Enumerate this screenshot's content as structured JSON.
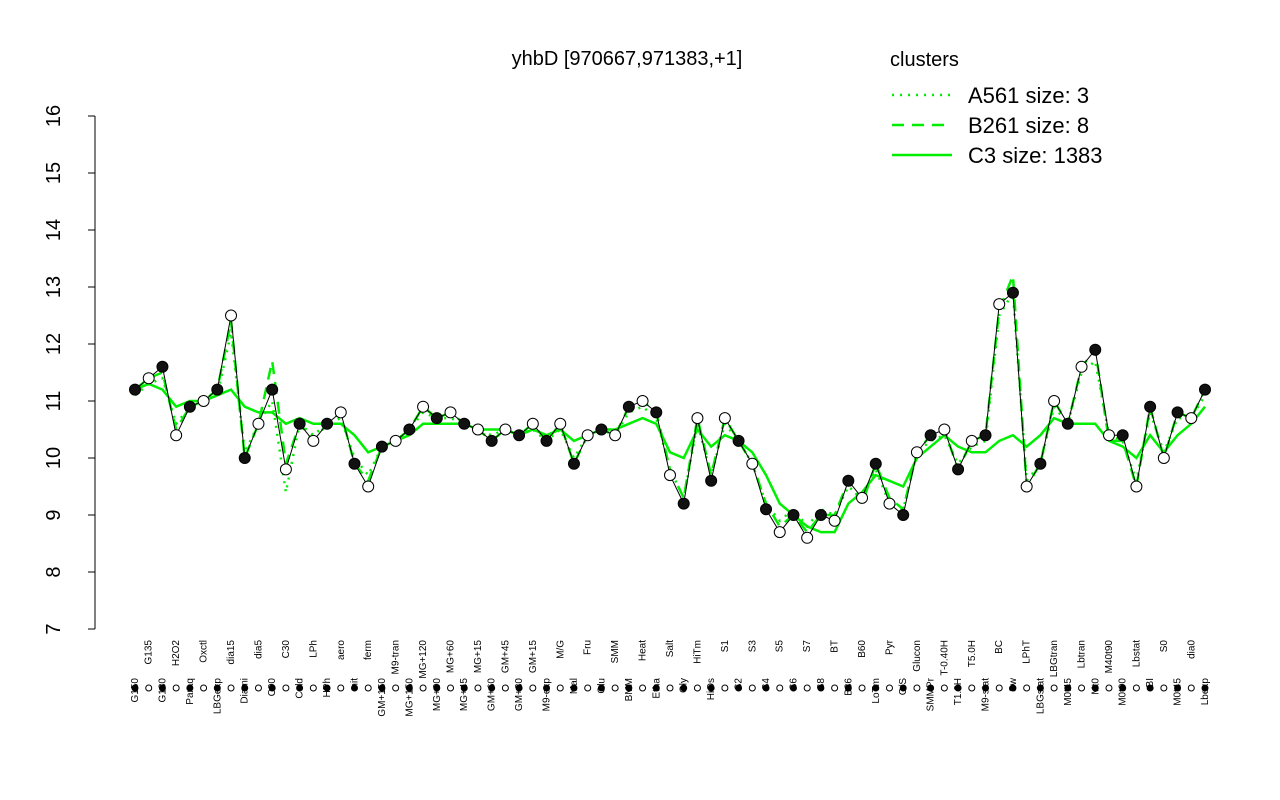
{
  "chart_data": {
    "type": "line",
    "title": "yhbD [970667,971383,+1]",
    "legend_title": "clusters",
    "legend_color": "#00ee00",
    "ylim": [
      7,
      16
    ],
    "yticks": [
      7,
      8,
      9,
      10,
      11,
      12,
      13,
      14,
      15,
      16
    ],
    "categories": [
      "G150",
      "G135",
      "G180",
      "H2O2",
      "Paraq",
      "Oxctl",
      "LBGexp",
      "dia15",
      "Diami",
      "dia5",
      "C90",
      "C30",
      "Cold",
      "LPh",
      "HPh",
      "aero",
      "nit",
      "ferm",
      "GM+150",
      "M9-tran",
      "MG+150",
      "MG+120",
      "MG+90",
      "MG+60",
      "MG+45",
      "MG+15",
      "GM+60",
      "GM+45",
      "GM+30",
      "GM+15",
      "M9-exp",
      "M/G",
      "Mal",
      "Fru",
      "Glu",
      "SMM",
      "BMM",
      "Heat",
      "Etha",
      "Salt",
      "Gly",
      "HiTm",
      "HiOs",
      "S1",
      "S2",
      "S3",
      "S4",
      "S5",
      "S6",
      "S7",
      "S8",
      "BT",
      "B36",
      "B60",
      "LoTm",
      "Pyr",
      "G/S",
      "Glucon",
      "SMMPr",
      "T-0.40H",
      "T1.0H",
      "T5.0H",
      "M9-stat",
      "BC",
      "Sw",
      "LPhT",
      "LBGstat",
      "LBGtran",
      "M0t45",
      "Lbtran",
      "Mt0",
      "M40t90",
      "M0t90",
      "Lbstat",
      "BI",
      "S0",
      "M0t45",
      "dia0",
      "Lbexp"
    ],
    "points": [
      11.2,
      11.4,
      11.6,
      10.4,
      10.9,
      11.0,
      11.2,
      12.5,
      10.0,
      10.6,
      11.2,
      9.8,
      10.6,
      10.3,
      10.6,
      10.8,
      9.9,
      9.5,
      10.2,
      10.3,
      10.5,
      10.9,
      10.7,
      10.8,
      10.6,
      10.5,
      10.3,
      10.5,
      10.4,
      10.6,
      10.3,
      10.6,
      9.9,
      10.4,
      10.5,
      10.4,
      10.9,
      11.0,
      10.8,
      9.7,
      9.2,
      10.7,
      9.6,
      10.7,
      10.3,
      9.9,
      9.1,
      8.7,
      9.0,
      8.6,
      9.0,
      8.9,
      9.6,
      9.3,
      9.9,
      9.2,
      9.0,
      10.1,
      10.4,
      10.5,
      9.8,
      10.3,
      10.4,
      12.7,
      12.9,
      9.5,
      9.9,
      11.0,
      10.6,
      11.6,
      11.9,
      10.4,
      10.4,
      9.5,
      10.9,
      10.0,
      10.8,
      10.7,
      11.2
    ],
    "series": [
      {
        "name": "A561 size: 3",
        "color": "#00ee00",
        "dash": "dotted",
        "values": [
          11.1,
          11.3,
          11.4,
          10.6,
          10.9,
          11.0,
          11.1,
          12.2,
          10.1,
          10.6,
          11.0,
          9.4,
          10.6,
          10.4,
          10.6,
          10.7,
          10.0,
          9.7,
          10.2,
          10.3,
          10.5,
          10.8,
          10.7,
          10.7,
          10.6,
          10.5,
          10.4,
          10.5,
          10.4,
          10.5,
          10.3,
          10.5,
          10.0,
          10.4,
          10.5,
          10.4,
          10.8,
          10.9,
          10.7,
          9.8,
          9.3,
          10.6,
          9.7,
          10.6,
          10.3,
          9.9,
          9.2,
          8.9,
          9.1,
          8.8,
          9.1,
          9.0,
          9.5,
          9.3,
          9.8,
          9.2,
          9.1,
          10.1,
          10.3,
          10.4,
          9.9,
          10.2,
          10.3,
          12.5,
          12.9,
          9.6,
          9.9,
          10.9,
          10.6,
          11.5,
          11.7,
          10.4,
          10.3,
          9.6,
          10.8,
          10.1,
          10.7,
          10.7,
          11.1
        ]
      },
      {
        "name": "B261 size: 8",
        "color": "#00ee00",
        "dash": "dashed",
        "values": [
          11.2,
          11.4,
          11.5,
          10.5,
          10.9,
          11.0,
          11.2,
          12.4,
          10.0,
          10.6,
          11.7,
          9.9,
          10.6,
          10.3,
          10.6,
          10.8,
          9.9,
          9.6,
          10.2,
          10.3,
          10.5,
          10.9,
          10.7,
          10.8,
          10.6,
          10.5,
          10.3,
          10.5,
          10.4,
          10.6,
          10.3,
          10.6,
          9.9,
          10.4,
          10.5,
          10.4,
          10.9,
          11.0,
          10.8,
          9.8,
          9.3,
          10.7,
          9.7,
          10.7,
          10.3,
          9.9,
          9.2,
          8.8,
          9.0,
          8.7,
          9.0,
          9.0,
          9.6,
          9.2,
          9.9,
          9.3,
          9.1,
          10.1,
          10.4,
          10.5,
          9.8,
          10.3,
          10.4,
          12.6,
          13.2,
          9.5,
          9.9,
          11.0,
          10.6,
          11.6,
          11.9,
          10.3,
          10.3,
          9.5,
          10.9,
          10.0,
          10.8,
          10.7,
          11.2
        ]
      },
      {
        "name": "C3 size: 1383",
        "color": "#00ee00",
        "dash": "solid",
        "values": [
          11.2,
          11.3,
          11.2,
          10.9,
          11.0,
          11.0,
          11.1,
          11.2,
          10.9,
          10.8,
          10.8,
          10.6,
          10.7,
          10.6,
          10.6,
          10.6,
          10.4,
          10.1,
          10.2,
          10.3,
          10.4,
          10.6,
          10.6,
          10.6,
          10.6,
          10.5,
          10.5,
          10.5,
          10.4,
          10.5,
          10.4,
          10.5,
          10.3,
          10.4,
          10.5,
          10.5,
          10.6,
          10.7,
          10.6,
          10.1,
          10.0,
          10.5,
          10.2,
          10.4,
          10.3,
          10.1,
          9.7,
          9.2,
          9.0,
          8.8,
          8.7,
          8.7,
          9.2,
          9.4,
          9.7,
          9.6,
          9.5,
          10.0,
          10.2,
          10.4,
          10.2,
          10.1,
          10.1,
          10.3,
          10.4,
          10.2,
          10.4,
          10.7,
          10.6,
          10.6,
          10.6,
          10.3,
          10.2,
          10.0,
          10.4,
          10.1,
          10.4,
          10.6,
          10.9
        ]
      }
    ]
  }
}
